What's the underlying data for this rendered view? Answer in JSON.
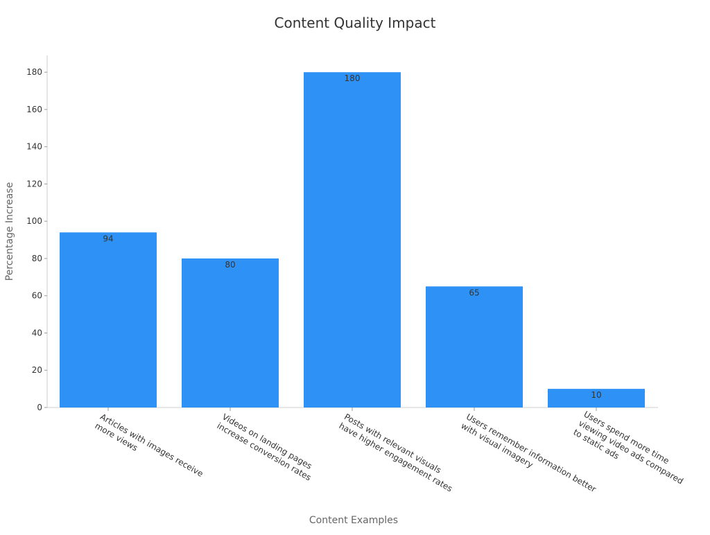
{
  "chart_data": {
    "type": "bar",
    "title": "Content Quality Impact",
    "x_label": "Content Examples",
    "y_label": "Percentage Increase",
    "categories": [
      "Articles with images receive\nmore views",
      "Videos on landing pages\nincrease conversion rates",
      "Posts with relevant visuals\nhave higher engagement rates",
      "Users remember information better\nwith visual imagery",
      "Users spend more time\nviewing video ads compared\nto static ads"
    ],
    "values": [
      94,
      80,
      180,
      65,
      10
    ],
    "color": "#2e91f5",
    "ylim": [
      0,
      189
    ],
    "yticks": [
      0,
      20,
      40,
      60,
      80,
      100,
      120,
      140,
      160,
      180
    ]
  }
}
